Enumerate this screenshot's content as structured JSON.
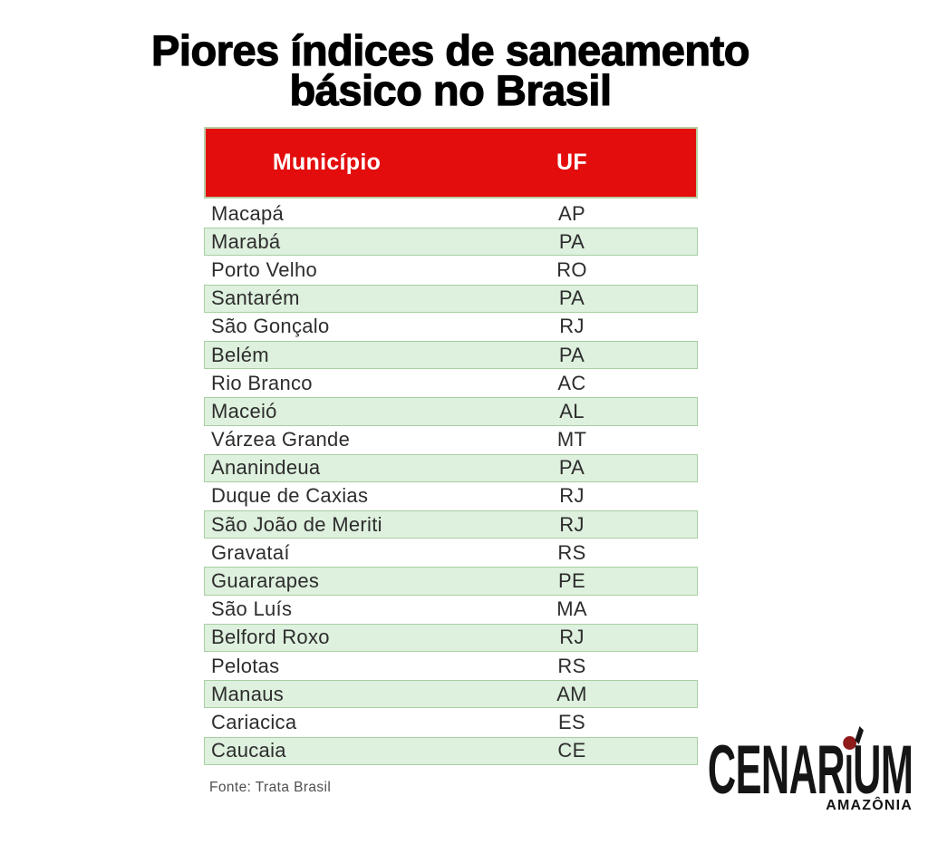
{
  "title": {
    "line1": "Piores índices de saneamento",
    "line2": "básico no Brasil"
  },
  "table": {
    "headers": {
      "municipio": "Município",
      "uf": "UF"
    },
    "rows": [
      {
        "municipio": "Macapá",
        "uf": "AP"
      },
      {
        "municipio": "Marabá",
        "uf": "PA"
      },
      {
        "municipio": "Porto Velho",
        "uf": "RO"
      },
      {
        "municipio": "Santarém",
        "uf": "PA"
      },
      {
        "municipio": "São Gonçalo",
        "uf": "RJ"
      },
      {
        "municipio": "Belém",
        "uf": "PA"
      },
      {
        "municipio": "Rio Branco",
        "uf": "AC"
      },
      {
        "municipio": "Maceió",
        "uf": "AL"
      },
      {
        "municipio": "Várzea Grande",
        "uf": "MT"
      },
      {
        "municipio": "Ananindeua",
        "uf": "PA"
      },
      {
        "municipio": "Duque de Caxias",
        "uf": "RJ"
      },
      {
        "municipio": "São João de Meriti",
        "uf": "RJ"
      },
      {
        "municipio": "Gravataí",
        "uf": "RS"
      },
      {
        "municipio": "Guararapes",
        "uf": "PE"
      },
      {
        "municipio": "São Luís",
        "uf": "MA"
      },
      {
        "municipio": "Belford Roxo",
        "uf": "RJ"
      },
      {
        "municipio": "Pelotas",
        "uf": "RS"
      },
      {
        "municipio": "Manaus",
        "uf": "AM"
      },
      {
        "municipio": "Cariacica",
        "uf": "ES"
      },
      {
        "municipio": "Caucaia",
        "uf": "CE"
      }
    ]
  },
  "footer": {
    "source": "Fonte: Trata Brasil"
  },
  "logo": {
    "prefix": "CENAR",
    "letter_i": "I",
    "letter_u": "U",
    "suffix": "M",
    "subtitle": "AMAZÔNIA"
  },
  "colors": {
    "background": "#ffffff",
    "title_text": "#000000",
    "header_bg": "#e30d0d",
    "header_text": "#ffffff",
    "header_border": "#b8cfa5",
    "row_green_bg": "#def0de",
    "row_green_border": "#a7cfa2",
    "row_text": "#2d2d2d",
    "source_text": "#4f4f4f",
    "logo_black": "#151515",
    "logo_dot": "#8f1a1a"
  },
  "chart_data": {
    "type": "table",
    "title": "Piores índices de saneamento básico no Brasil",
    "columns": [
      "Município",
      "UF"
    ],
    "rows": [
      [
        "Macapá",
        "AP"
      ],
      [
        "Marabá",
        "PA"
      ],
      [
        "Porto Velho",
        "RO"
      ],
      [
        "Santarém",
        "PA"
      ],
      [
        "São Gonçalo",
        "RJ"
      ],
      [
        "Belém",
        "PA"
      ],
      [
        "Rio Branco",
        "AC"
      ],
      [
        "Maceió",
        "AL"
      ],
      [
        "Várzea Grande",
        "MT"
      ],
      [
        "Ananindeua",
        "PA"
      ],
      [
        "Duque de Caxias",
        "RJ"
      ],
      [
        "São João de Meriti",
        "RJ"
      ],
      [
        "Gravataí",
        "RS"
      ],
      [
        "Guararapes",
        "PE"
      ],
      [
        "São Luís",
        "MA"
      ],
      [
        "Belford Roxo",
        "RJ"
      ],
      [
        "Pelotas",
        "RS"
      ],
      [
        "Manaus",
        "AM"
      ],
      [
        "Cariacica",
        "ES"
      ],
      [
        "Caucaia",
        "CE"
      ]
    ],
    "source": "Fonte: Trata Brasil"
  }
}
